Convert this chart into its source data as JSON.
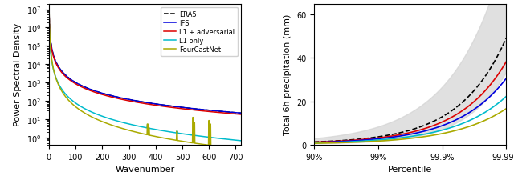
{
  "left": {
    "xlabel": "Wavenumber",
    "ylabel": "Power Spectral Density",
    "xlim": [
      0,
      720
    ],
    "ylim": [
      0.4,
      20000000.0
    ],
    "yticks_log": [
      1,
      10,
      100,
      1000,
      10000,
      100000,
      1000000,
      10000000
    ]
  },
  "right": {
    "xlabel": "Percentile",
    "ylabel": "Total 6h precipitation (mm)",
    "ylim": [
      0,
      65
    ],
    "yticks": [
      0,
      20,
      40,
      60
    ],
    "xticklabels": [
      "90%",
      "99%",
      "99.9%",
      "99.99%"
    ]
  },
  "line_colors": {
    "ERA5": "#000000",
    "IFS": "#0000dd",
    "L1_adv": "#dd0000",
    "L1_only": "#00bbcc",
    "FCN": "#aaaa00"
  },
  "legend_labels": [
    "ERA5",
    "IFS",
    "L1 + adversarial",
    "L1 only",
    "FourCastNet"
  ]
}
